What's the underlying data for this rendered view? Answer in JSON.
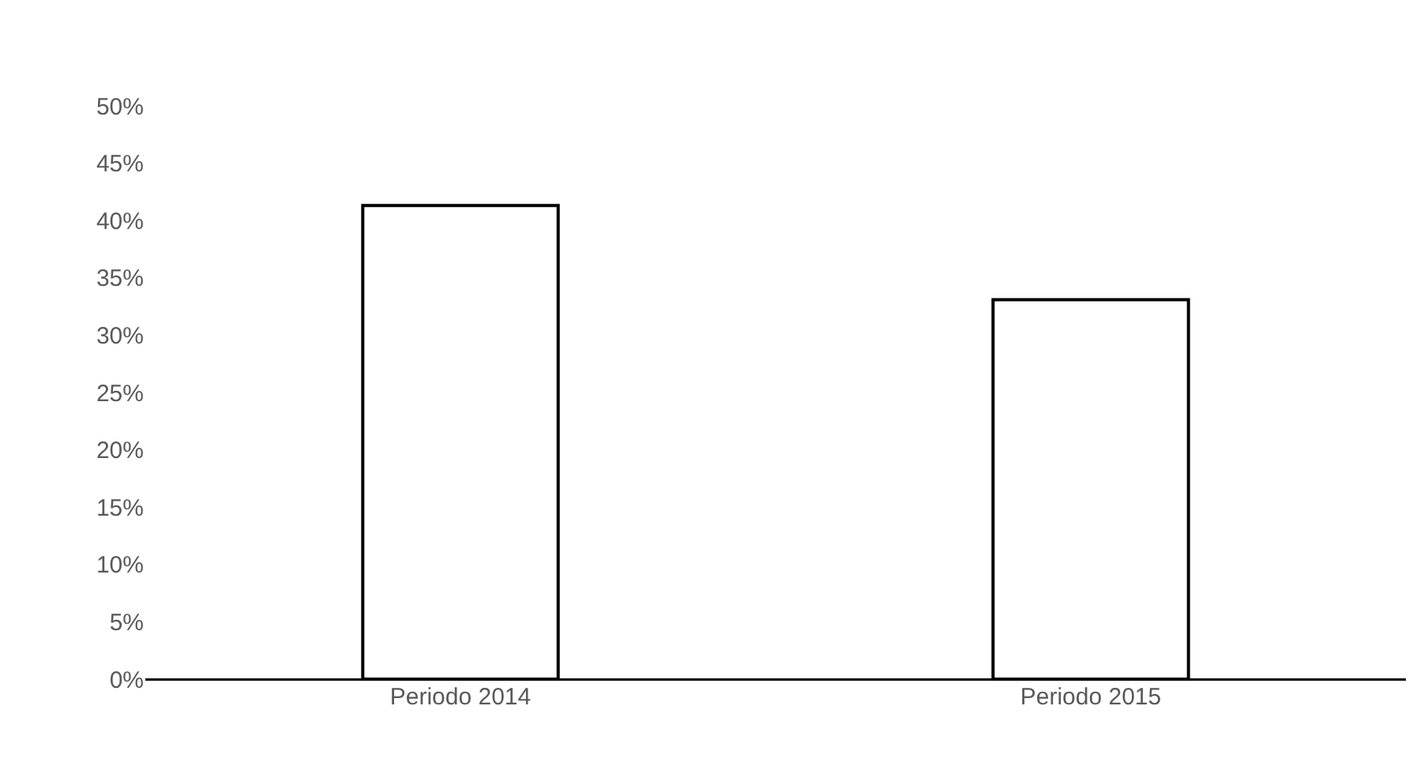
{
  "chart_data": {
    "type": "bar",
    "categories": [
      "Periodo 2014",
      "Periodo 2015"
    ],
    "values": [
      41.3,
      33.1
    ],
    "color": "#ffffff",
    "ylim": [
      0,
      50
    ],
    "yticks": [
      {
        "value": 0,
        "label": "0%"
      },
      {
        "value": 5,
        "label": "5%"
      },
      {
        "value": 10,
        "label": "10%"
      },
      {
        "value": 15,
        "label": "15%"
      },
      {
        "value": 20,
        "label": "20%"
      },
      {
        "value": 25,
        "label": "25%"
      },
      {
        "value": 30,
        "label": "30%"
      },
      {
        "value": 35,
        "label": "35%"
      },
      {
        "value": 40,
        "label": "40%"
      },
      {
        "value": 45,
        "label": "45%"
      },
      {
        "value": 50,
        "label": "50%"
      }
    ],
    "grid": false
  }
}
